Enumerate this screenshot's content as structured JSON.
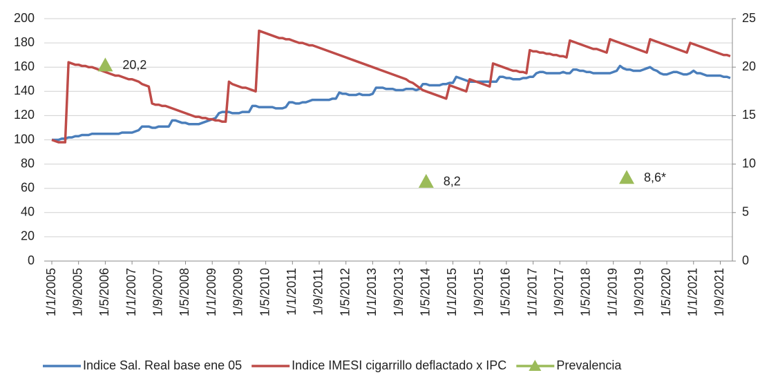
{
  "chart_data": {
    "type": "line",
    "categories": [
      "1/1/2005",
      null,
      null,
      null,
      null,
      null,
      null,
      null,
      "1/9/2005",
      null,
      null,
      null,
      null,
      null,
      null,
      null,
      "1/5/2006",
      null,
      null,
      null,
      null,
      null,
      null,
      null,
      "1/1/2007",
      null,
      null,
      null,
      null,
      null,
      null,
      null,
      "1/9/2007",
      null,
      null,
      null,
      null,
      null,
      null,
      null,
      "1/5/2008",
      null,
      null,
      null,
      null,
      null,
      null,
      null,
      "1/1/2009",
      null,
      null,
      null,
      null,
      null,
      null,
      null,
      "1/9/2009",
      null,
      null,
      null,
      null,
      null,
      null,
      null,
      "1/5/2010",
      null,
      null,
      null,
      null,
      null,
      null,
      null,
      "1/1/2011",
      null,
      null,
      null,
      null,
      null,
      null,
      null,
      "1/9/2011",
      null,
      null,
      null,
      null,
      null,
      null,
      null,
      "1/5/2012",
      null,
      null,
      null,
      null,
      null,
      null,
      null,
      "1/1/2013",
      null,
      null,
      null,
      null,
      null,
      null,
      null,
      "1/9/2013",
      null,
      null,
      null,
      null,
      null,
      null,
      null,
      "1/5/2014",
      null,
      null,
      null,
      null,
      null,
      null,
      null,
      "1/1/2015",
      null,
      null,
      null,
      null,
      null,
      null,
      null,
      "1/9/2015",
      null,
      null,
      null,
      null,
      null,
      null,
      null,
      "1/5/2016",
      null,
      null,
      null,
      null,
      null,
      null,
      null,
      "1/1/2017",
      null,
      null,
      null,
      null,
      null,
      null,
      null,
      "1/9/2017",
      null,
      null,
      null,
      null,
      null,
      null,
      null,
      "1/5/2018",
      null,
      null,
      null,
      null,
      null,
      null,
      null,
      "1/1/2019",
      null,
      null,
      null,
      null,
      null,
      null,
      null,
      "1/9/2019",
      null,
      null,
      null,
      null,
      null,
      null,
      null,
      "1/5/2020",
      null,
      null,
      null,
      null,
      null,
      null,
      null,
      "1/1/2021",
      null,
      null,
      null,
      null,
      null,
      null,
      null,
      "1/9/2021",
      null,
      null,
      null
    ],
    "series": [
      {
        "name": "Indice Sal. Real base ene 05",
        "color": "#4a7ebb",
        "values": [
          100,
          100,
          100,
          101,
          101,
          102,
          102,
          103,
          103,
          104,
          104,
          104,
          105,
          105,
          105,
          105,
          105,
          105,
          105,
          105,
          105,
          106,
          106,
          106,
          106,
          107,
          108,
          111,
          111,
          111,
          110,
          110,
          111,
          111,
          111,
          111,
          116,
          116,
          115,
          114,
          114,
          113,
          113,
          113,
          113,
          114,
          115,
          116,
          117,
          118,
          122,
          123,
          123,
          123,
          122,
          122,
          122,
          123,
          123,
          123,
          128,
          128,
          127,
          127,
          127,
          127,
          127,
          126,
          126,
          126,
          127,
          131,
          131,
          130,
          130,
          131,
          131,
          132,
          133,
          133,
          133,
          133,
          133,
          133,
          134,
          134,
          139,
          138,
          138,
          137,
          137,
          137,
          138,
          137,
          137,
          137,
          138,
          143,
          143,
          143,
          142,
          142,
          142,
          141,
          141,
          141,
          142,
          142,
          142,
          141,
          142,
          146,
          146,
          145,
          145,
          145,
          145,
          146,
          146,
          147,
          147,
          152,
          151,
          150,
          149,
          148,
          148,
          148,
          148,
          148,
          148,
          148,
          148,
          148,
          152,
          152,
          151,
          151,
          150,
          150,
          150,
          151,
          151,
          152,
          152,
          155,
          156,
          156,
          155,
          155,
          155,
          155,
          155,
          156,
          155,
          155,
          158,
          158,
          157,
          157,
          156,
          156,
          155,
          155,
          155,
          155,
          155,
          155,
          156,
          157,
          161,
          159,
          158,
          158,
          157,
          157,
          157,
          158,
          159,
          160,
          158,
          157,
          155,
          154,
          154,
          155,
          156,
          156,
          155,
          154,
          154,
          155,
          157,
          155,
          155,
          154,
          153,
          153,
          153,
          153,
          153,
          152,
          152,
          151
        ]
      },
      {
        "name": "Indice IMESI cigarrillo deflactado x IPC",
        "color": "#be4b48",
        "values": [
          100,
          99,
          98,
          98,
          98,
          164,
          163,
          162,
          162,
          161,
          161,
          160,
          160,
          159,
          158,
          157,
          156,
          155,
          154,
          153,
          153,
          152,
          151,
          150,
          150,
          149,
          148,
          146,
          145,
          144,
          130,
          129,
          129,
          128,
          128,
          127,
          126,
          125,
          124,
          123,
          122,
          121,
          120,
          119,
          119,
          118,
          118,
          117,
          117,
          116,
          116,
          115,
          115,
          148,
          146,
          145,
          144,
          143,
          143,
          142,
          141,
          140,
          190,
          189,
          188,
          187,
          186,
          185,
          184,
          184,
          183,
          183,
          182,
          181,
          180,
          180,
          179,
          178,
          178,
          177,
          176,
          175,
          174,
          173,
          172,
          171,
          170,
          169,
          168,
          167,
          166,
          165,
          164,
          163,
          162,
          161,
          160,
          159,
          158,
          157,
          156,
          155,
          154,
          153,
          152,
          151,
          150,
          148,
          147,
          145,
          143,
          141,
          140,
          139,
          138,
          137,
          136,
          135,
          134,
          145,
          144,
          143,
          142,
          141,
          140,
          150,
          149,
          148,
          147,
          146,
          145,
          144,
          163,
          162,
          161,
          160,
          159,
          158,
          157,
          157,
          156,
          156,
          155,
          174,
          173,
          173,
          172,
          172,
          171,
          171,
          170,
          170,
          169,
          169,
          168,
          182,
          181,
          180,
          179,
          178,
          177,
          176,
          175,
          175,
          174,
          173,
          172,
          183,
          182,
          181,
          180,
          179,
          178,
          177,
          176,
          175,
          174,
          173,
          172,
          183,
          182,
          181,
          180,
          179,
          178,
          177,
          176,
          175,
          174,
          173,
          172,
          180,
          179,
          178,
          177,
          176,
          175,
          174,
          173,
          172,
          171,
          170,
          170,
          169
        ]
      },
      {
        "name": "Prevalencia",
        "color": "#9bbb59",
        "axis": "y2",
        "values": [
          null,
          null,
          null,
          null,
          null,
          null,
          null,
          null,
          null,
          null,
          null,
          null,
          null,
          null,
          null,
          null,
          20.2,
          null,
          null,
          null,
          null,
          null,
          null,
          null,
          null,
          null,
          null,
          null,
          null,
          null,
          null,
          null,
          null,
          null,
          null,
          null,
          null,
          null,
          null,
          null,
          null,
          null,
          null,
          null,
          null,
          null,
          null,
          null,
          null,
          null,
          null,
          null,
          null,
          null,
          null,
          null,
          null,
          null,
          null,
          null,
          null,
          null,
          null,
          null,
          null,
          null,
          null,
          null,
          null,
          null,
          null,
          null,
          null,
          null,
          null,
          null,
          null,
          null,
          null,
          null,
          null,
          null,
          null,
          null,
          null,
          null,
          null,
          null,
          null,
          null,
          null,
          null,
          null,
          null,
          null,
          null,
          null,
          null,
          null,
          null,
          null,
          null,
          null,
          null,
          null,
          null,
          null,
          null,
          null,
          null,
          null,
          null,
          8.2,
          null,
          null,
          null,
          null,
          null,
          null,
          null,
          null,
          null,
          null,
          null,
          null,
          null,
          null,
          null,
          null,
          null,
          null,
          null,
          null,
          null,
          null,
          null,
          null,
          null,
          null,
          null,
          null,
          null,
          null,
          null,
          null,
          null,
          null,
          null,
          null,
          null,
          null,
          null,
          null,
          null,
          null,
          null,
          null,
          null,
          null,
          null,
          null,
          null,
          null,
          null,
          null,
          null,
          null,
          null,
          null,
          null,
          null,
          null,
          8.6,
          null,
          null,
          null,
          null,
          null,
          null,
          null,
          null,
          null,
          null,
          null,
          null,
          null,
          null,
          null,
          null,
          null,
          null,
          null,
          null,
          null,
          null,
          null,
          null,
          null,
          null,
          null,
          null,
          null,
          null,
          null
        ],
        "value_labels": [
          null,
          null,
          null,
          null,
          null,
          null,
          null,
          null,
          null,
          null,
          null,
          null,
          null,
          null,
          null,
          null,
          "20,2",
          null,
          null,
          null,
          null,
          null,
          null,
          null,
          null,
          null,
          null,
          null,
          null,
          null,
          null,
          null,
          null,
          null,
          null,
          null,
          null,
          null,
          null,
          null,
          null,
          null,
          null,
          null,
          null,
          null,
          null,
          null,
          null,
          null,
          null,
          null,
          null,
          null,
          null,
          null,
          null,
          null,
          null,
          null,
          null,
          null,
          null,
          null,
          null,
          null,
          null,
          null,
          null,
          null,
          null,
          null,
          null,
          null,
          null,
          null,
          null,
          null,
          null,
          null,
          null,
          null,
          null,
          null,
          null,
          null,
          null,
          null,
          null,
          null,
          null,
          null,
          null,
          null,
          null,
          null,
          null,
          null,
          null,
          null,
          null,
          null,
          null,
          null,
          null,
          null,
          null,
          null,
          null,
          null,
          null,
          null,
          "8,2",
          null,
          null,
          null,
          null,
          null,
          null,
          null,
          null,
          null,
          null,
          null,
          null,
          null,
          null,
          null,
          null,
          null,
          null,
          null,
          null,
          null,
          null,
          null,
          null,
          null,
          null,
          null,
          null,
          null,
          null,
          null,
          null,
          null,
          null,
          null,
          null,
          null,
          null,
          null,
          null,
          null,
          null,
          null,
          null,
          null,
          null,
          null,
          null,
          null,
          null,
          null,
          null,
          null,
          null,
          null,
          null,
          null,
          null,
          null,
          "8,6*",
          null,
          null,
          null,
          null,
          null,
          null,
          null,
          null,
          null,
          null,
          null,
          null,
          null,
          null,
          null,
          null,
          null,
          null,
          null,
          null,
          null,
          null,
          null,
          null,
          null,
          null,
          null,
          null,
          null,
          null,
          null
        ]
      }
    ],
    "ylim": [
      0,
      200
    ],
    "yticks": [
      0,
      20,
      40,
      60,
      80,
      100,
      120,
      140,
      160,
      180,
      200
    ],
    "y2lim": [
      0,
      25
    ],
    "y2ticks": [
      0,
      5,
      10,
      15,
      20,
      25
    ],
    "grid": true,
    "legend": "bottom"
  }
}
